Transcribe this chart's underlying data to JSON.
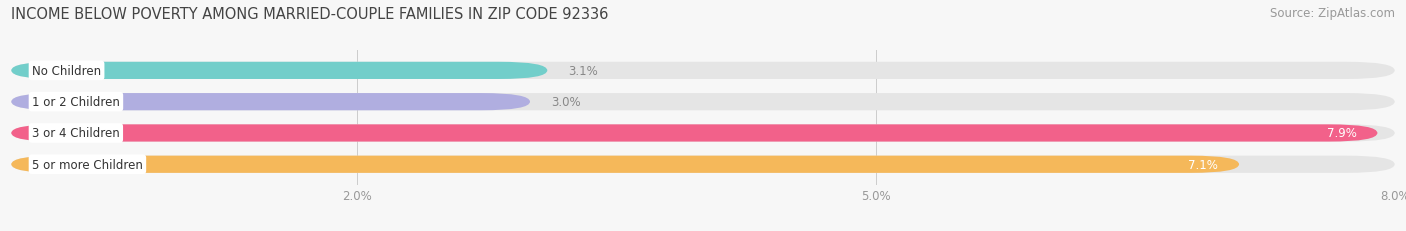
{
  "title": "INCOME BELOW POVERTY AMONG MARRIED-COUPLE FAMILIES IN ZIP CODE 92336",
  "source": "Source: ZipAtlas.com",
  "categories": [
    "No Children",
    "1 or 2 Children",
    "3 or 4 Children",
    "5 or more Children"
  ],
  "values": [
    3.1,
    3.0,
    7.9,
    7.1
  ],
  "bar_colors": [
    "#72ceca",
    "#b0aee0",
    "#f2618a",
    "#f5b85a"
  ],
  "bar_labels": [
    "3.1%",
    "3.0%",
    "7.9%",
    "7.1%"
  ],
  "label_inside": [
    false,
    false,
    true,
    true
  ],
  "label_color_inside": "#ffffff",
  "label_color_outside": "#888888",
  "xlim": [
    0,
    8.0
  ],
  "xticks": [
    2.0,
    5.0,
    8.0
  ],
  "xticklabels": [
    "2.0%",
    "5.0%",
    "8.0%"
  ],
  "background_color": "#f7f7f7",
  "bar_bg_color": "#e5e5e5",
  "title_fontsize": 10.5,
  "source_fontsize": 8.5,
  "label_fontsize": 8.5,
  "cat_fontsize": 8.5,
  "tick_fontsize": 8.5
}
